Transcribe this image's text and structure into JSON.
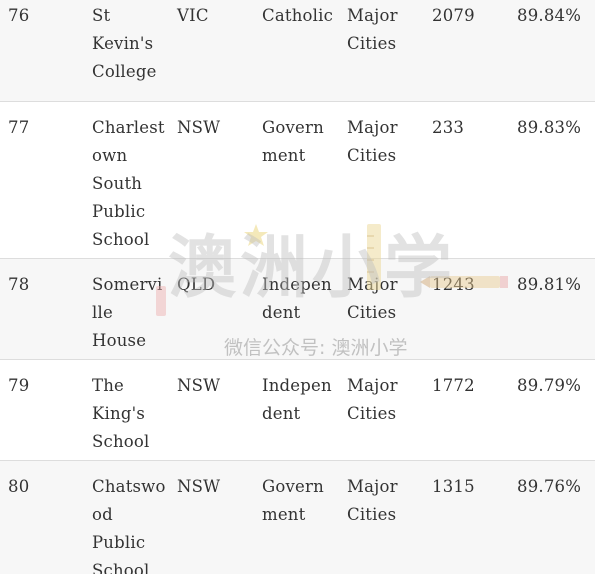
{
  "rows": [
    {
      "rank": "76",
      "school": "St\nKevin's\nCollege",
      "state": "VIC",
      "sector": "Catholic",
      "location": "Major\nCities",
      "enrolments": "2079",
      "score": "89.84%"
    },
    {
      "rank": "77",
      "school": "Charlest\nown\nSouth\nPublic\nSchool",
      "state": "NSW",
      "sector": "Govern\nment",
      "location": "Major\nCities",
      "enrolments": "233",
      "score": "89.83%"
    },
    {
      "rank": "78",
      "school": "Somervi\nlle\nHouse",
      "state": "QLD",
      "sector": "Indepen\ndent",
      "location": "Major\nCities",
      "enrolments": "1243",
      "score": "89.81%"
    },
    {
      "rank": "79",
      "school": "The\nKing's\nSchool",
      "state": "NSW",
      "sector": "Indepen\ndent",
      "location": "Major\nCities",
      "enrolments": "1772",
      "score": "89.79%"
    },
    {
      "rank": "80",
      "school": "Chatswo\nod\nPublic\nSchool",
      "state": "NSW",
      "sector": "Govern\nment",
      "location": "Major\nCities",
      "enrolments": "1315",
      "score": "89.76%"
    }
  ],
  "watermark": {
    "main": "澳洲小学",
    "sub": "微信公众号: 澳洲小学"
  }
}
